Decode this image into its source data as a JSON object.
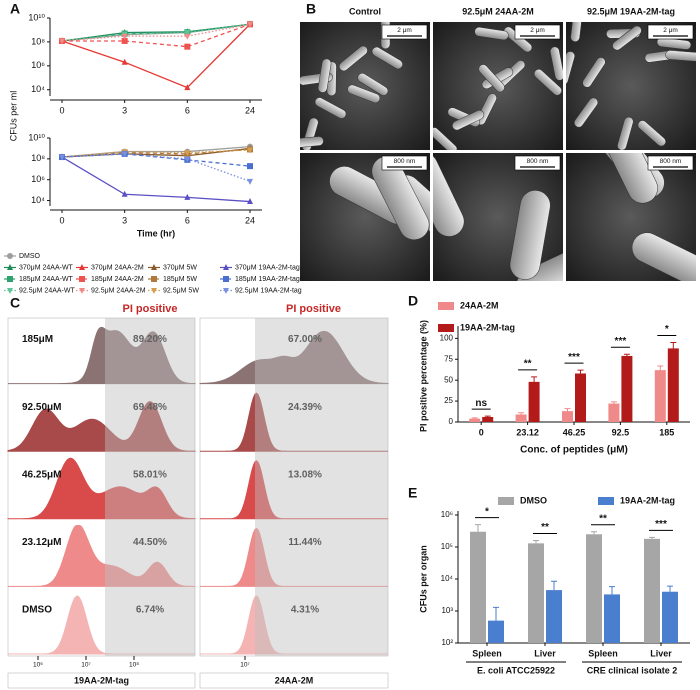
{
  "panel_labels": [
    "A",
    "B",
    "C",
    "D",
    "E"
  ],
  "chart_data": [
    {
      "type": "line",
      "y_scale": "log",
      "y_label": "CFUs per ml",
      "categories": [
        "0",
        "3",
        "6",
        "24"
      ],
      "ylim": [
        3000,
        10000000000
      ],
      "yticks": [
        {
          "value": 10000,
          "label": "10⁴"
        },
        {
          "value": 1000000,
          "label": "10⁶"
        },
        {
          "value": 100000000,
          "label": "10⁸"
        },
        {
          "value": 10000000000,
          "label": "10¹⁰"
        }
      ],
      "series": [
        {
          "name": "DMSO",
          "color": "#9e9e9e",
          "marker": "circle",
          "dash": "solid",
          "values": [
            120000000,
            400000000,
            600000000,
            3000000000
          ]
        },
        {
          "name": "370μM 24AA-WT",
          "color": "#1e8c5a",
          "marker": "triangle-up",
          "dash": "solid",
          "values": [
            120000000,
            600000000,
            700000000,
            3000000000
          ]
        },
        {
          "name": "185μM 24AA-WT",
          "color": "#2fa36f",
          "marker": "square",
          "dash": "dashed",
          "values": [
            120000000,
            500000000,
            650000000,
            3000000000
          ]
        },
        {
          "name": "92.5μM 24AA-WT",
          "color": "#5cc597",
          "marker": "triangle-down",
          "dash": "dotted",
          "values": [
            120000000,
            450000000,
            600000000,
            3000000000
          ]
        },
        {
          "name": "370μM 24AA-2M",
          "color": "#e53935",
          "marker": "triangle-up",
          "dash": "solid",
          "values": [
            120000000,
            2000000,
            15000,
            3000000000
          ]
        },
        {
          "name": "185μM 24AA-2M",
          "color": "#ef5350",
          "marker": "square",
          "dash": "dashed",
          "values": [
            120000000,
            120000000,
            40000000,
            3000000000
          ]
        },
        {
          "name": "92.5μM 24AA-2M",
          "color": "#f48a88",
          "marker": "triangle-down",
          "dash": "dotted",
          "values": [
            120000000,
            300000000,
            300000000,
            3000000000
          ]
        }
      ]
    },
    {
      "type": "line",
      "y_scale": "log",
      "x_label": "Time (hr)",
      "categories": [
        "0",
        "3",
        "6",
        "24"
      ],
      "ylim": [
        3000,
        10000000000
      ],
      "yticks": [
        {
          "value": 10000,
          "label": "10⁴"
        },
        {
          "value": 1000000,
          "label": "10⁶"
        },
        {
          "value": 100000000,
          "label": "10⁸"
        },
        {
          "value": 10000000000,
          "label": "10¹⁰"
        }
      ],
      "series": [
        {
          "color": "#9e9e9e",
          "marker": "circle",
          "dash": "solid",
          "values": [
            150000000,
            500000000,
            500000000,
            1500000000
          ]
        },
        {
          "name": "370μM 5W",
          "color": "#8b5a2b",
          "marker": "triangle-up",
          "dash": "solid",
          "values": [
            150000000,
            300000000,
            200000000,
            1000000000
          ]
        },
        {
          "name": "185μM 5W",
          "color": "#b07a3c",
          "marker": "square",
          "dash": "dashed",
          "values": [
            150000000,
            400000000,
            300000000,
            800000000
          ]
        },
        {
          "name": "92.5μM 5W",
          "color": "#d4a050",
          "marker": "triangle-down",
          "dash": "dotted",
          "values": [
            150000000,
            500000000,
            400000000,
            700000000
          ]
        },
        {
          "name": "370μM 19AA-2M-tag",
          "color": "#5b4fc4",
          "marker": "triangle-up",
          "dash": "solid",
          "values": [
            150000000,
            40000,
            20000,
            8000
          ]
        },
        {
          "name": "185μM 19AA-2M-tag",
          "color": "#4a6fd0",
          "marker": "square",
          "dash": "dashed",
          "values": [
            150000000,
            300000000,
            80000000,
            20000000
          ]
        },
        {
          "name": "92.5μM 19AA-2M-tag",
          "color": "#7b8fe0",
          "marker": "triangle-down",
          "dash": "dotted",
          "values": [
            150000000,
            300000000,
            100000000,
            700000
          ]
        }
      ]
    },
    {
      "type": "bar",
      "y_label": "PI positive percentage (%)",
      "x_label": "Conc. of peptides (μM)",
      "categories": [
        0,
        23.12,
        46.25,
        92.5,
        185
      ],
      "ylim": [
        0,
        110
      ],
      "yticks": [
        0,
        25,
        50,
        75,
        100
      ],
      "legend": "upper left",
      "series": [
        {
          "name": "24AA-2M",
          "color": "#f08a8a",
          "values": [
            4,
            9,
            13,
            22,
            62
          ],
          "errors": [
            1,
            2,
            3,
            2,
            5
          ]
        },
        {
          "name": "19AA-2M-tag",
          "color": "#b31b1b",
          "values": [
            6,
            48,
            58,
            79,
            88
          ],
          "errors": [
            1,
            6,
            4,
            2,
            7
          ]
        }
      ],
      "significance": [
        "ns",
        "**",
        "***",
        "***",
        "*"
      ]
    },
    {
      "type": "bar",
      "y_scale": "log",
      "y_label": "CFUs per organ",
      "ylim": [
        100,
        1000000
      ],
      "legend": "top",
      "yticks": [
        {
          "value": 100,
          "label": "10²"
        },
        {
          "value": 1000,
          "label": "10³"
        },
        {
          "value": 10000,
          "label": "10⁴"
        },
        {
          "value": 100000,
          "label": "10⁵"
        },
        {
          "value": 1000000,
          "label": "10⁶"
        }
      ],
      "groups": [
        {
          "name": "E. coli ATCC25922",
          "categories": [
            "Spleen",
            "Liver"
          ]
        },
        {
          "name": "CRE clinical isolate 2",
          "categories": [
            "Spleen",
            "Liver"
          ]
        }
      ],
      "series": [
        {
          "name": "DMSO",
          "color": "#a6a6a6",
          "values": [
            300000,
            130000,
            250000,
            180000
          ],
          "errors": [
            200000,
            30000,
            50000,
            20000
          ]
        },
        {
          "name": "19AA-2M-tag",
          "color": "#4a7fcf",
          "values": [
            500,
            4500,
            3300,
            4000
          ],
          "errors": [
            800,
            4000,
            2500,
            2000
          ]
        }
      ],
      "significance": [
        "*",
        "**",
        "**",
        "***"
      ]
    }
  ],
  "sem": {
    "columns": [
      "Control",
      "92.5μM 24AA-2M",
      "92.5μM 19AA-2M-tag"
    ],
    "scale_bars": [
      "2 μm",
      "800 nm"
    ]
  },
  "flow": {
    "gate_label": "PI positive",
    "rows": [
      "185μM",
      "92.50μM",
      "46.25μM",
      "23.12μM",
      "DMSO"
    ],
    "panels": [
      {
        "name": "19AA-2M-tag",
        "percentages": [
          "89.20%",
          "69.48%",
          "58.01%",
          "44.50%",
          "6.74%"
        ],
        "ticks": [
          "10⁶",
          "10⁷",
          "10⁸"
        ]
      },
      {
        "name": "24AA-2M",
        "percentages": [
          "67.00%",
          "24.39%",
          "13.08%",
          "11.44%",
          "4.31%"
        ],
        "ticks": [
          "10⁷"
        ]
      }
    ]
  }
}
